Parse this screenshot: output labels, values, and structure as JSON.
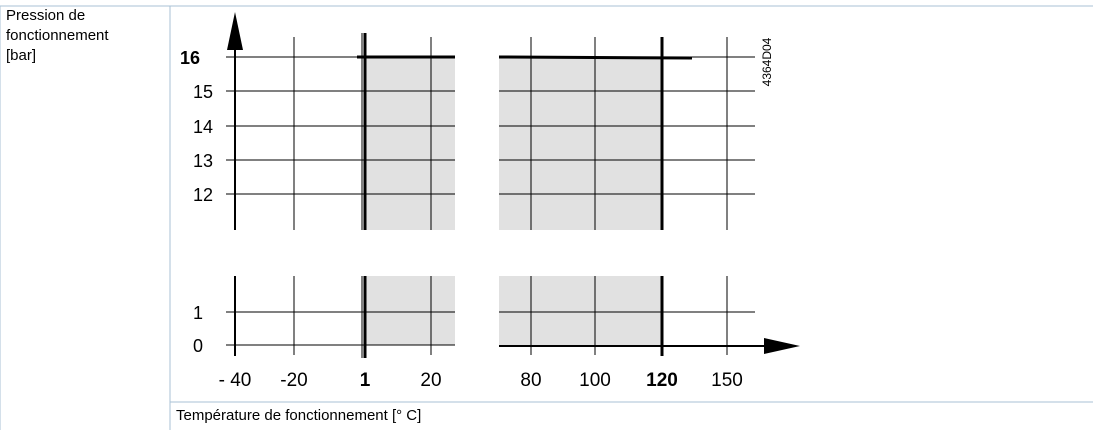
{
  "chart_data": {
    "type": "area",
    "title": "",
    "ylabel_lines": [
      "Pression de",
      "fonctionnement",
      "[bar]"
    ],
    "xlabel": "Température de fonctionnement [° C]",
    "code": "4364D04",
    "x_ticks": [
      {
        "label": "- 40",
        "bold": false
      },
      {
        "label": "-20",
        "bold": false
      },
      {
        "label": "1",
        "bold": true
      },
      {
        "label": "20",
        "bold": false
      },
      {
        "label": "80",
        "bold": false
      },
      {
        "label": "100",
        "bold": false
      },
      {
        "label": "120",
        "bold": true
      },
      {
        "label": "150",
        "bold": false
      }
    ],
    "y_ticks": [
      {
        "label": "16",
        "bold": true
      },
      {
        "label": "15",
        "bold": false
      },
      {
        "label": "14",
        "bold": false
      },
      {
        "label": "13",
        "bold": false
      },
      {
        "label": "12",
        "bold": false
      },
      {
        "label": "1",
        "bold": false
      },
      {
        "label": "0",
        "bold": false
      }
    ],
    "operating_range": {
      "temperature_min": 1,
      "temperature_max": 120,
      "pressure_max": 16,
      "unit_temperature": "°C",
      "unit_pressure": "bar"
    },
    "grid": true,
    "axis_breaks": {
      "x": "between 20 and 80",
      "y": "between 1 and 12"
    }
  }
}
